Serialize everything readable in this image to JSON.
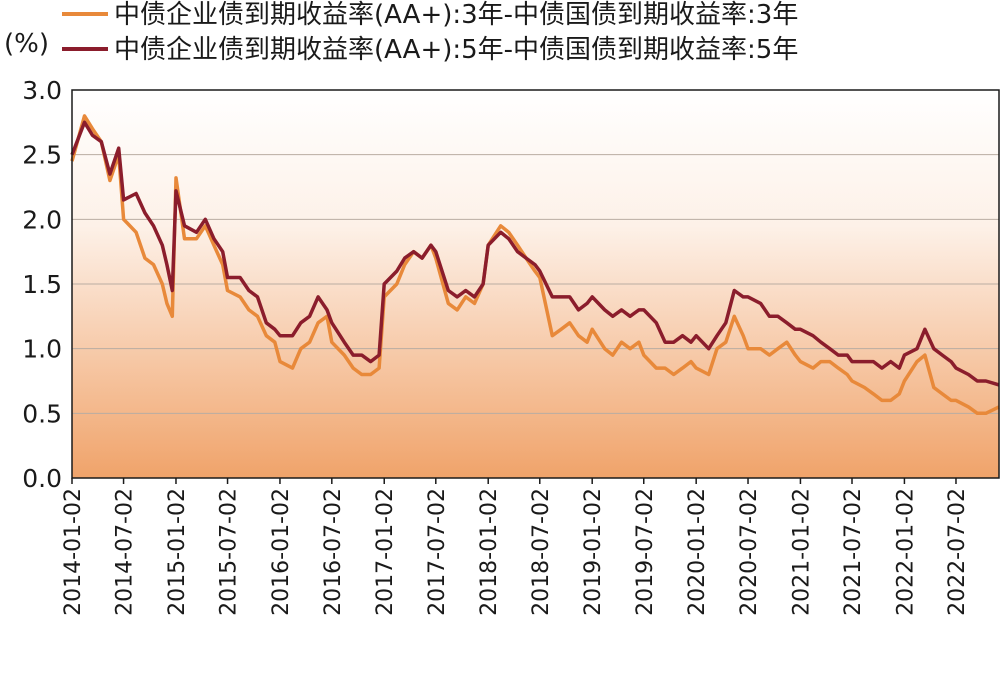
{
  "chart_data": {
    "type": "line",
    "unit_label": "(%)",
    "ylim": [
      0.0,
      3.0
    ],
    "y_ticks": [
      "3.0",
      "2.5",
      "2.0",
      "1.5",
      "1.0",
      "0.5",
      "0.0"
    ],
    "x_range": [
      "2014-01-02",
      "2022-11-30"
    ],
    "x_ticks": [
      "2014-01-02",
      "2014-07-02",
      "2015-01-02",
      "2015-07-02",
      "2016-01-02",
      "2016-07-02",
      "2017-01-02",
      "2017-07-02",
      "2018-01-02",
      "2018-07-02",
      "2019-01-02",
      "2019-07-02",
      "2020-01-02",
      "2020-07-02",
      "2021-01-02",
      "2021-07-02",
      "2022-01-02",
      "2022-07-02"
    ],
    "grid": true,
    "legend_position": "top",
    "colors": {
      "series_3y": "#e8893a",
      "series_5y": "#8b1d2c",
      "fill_top": "#ffffff",
      "fill_bottom": "#f0a36a"
    },
    "series": [
      {
        "name": "中债企业债到期收益率(AA+):3年-中债国债到期收益率:3年",
        "x": [
          "2014-01-02",
          "2014-02-15",
          "2014-03-15",
          "2014-04-15",
          "2014-05-15",
          "2014-06-15",
          "2014-07-02",
          "2014-08-15",
          "2014-09-15",
          "2014-10-15",
          "2014-11-15",
          "2014-12-01",
          "2014-12-20",
          "2015-01-02",
          "2015-02-01",
          "2015-03-15",
          "2015-04-15",
          "2015-05-15",
          "2015-06-15",
          "2015-07-02",
          "2015-08-15",
          "2015-09-15",
          "2015-10-15",
          "2015-11-15",
          "2015-12-15",
          "2016-01-02",
          "2016-02-15",
          "2016-03-15",
          "2016-04-15",
          "2016-05-15",
          "2016-06-15",
          "2016-07-02",
          "2016-08-15",
          "2016-09-15",
          "2016-10-15",
          "2016-11-15",
          "2016-12-15",
          "2017-01-02",
          "2017-02-15",
          "2017-03-15",
          "2017-04-15",
          "2017-05-15",
          "2017-06-15",
          "2017-07-02",
          "2017-08-15",
          "2017-09-15",
          "2017-10-15",
          "2017-11-15",
          "2017-12-15",
          "2018-01-02",
          "2018-02-15",
          "2018-03-15",
          "2018-04-15",
          "2018-05-15",
          "2018-06-15",
          "2018-07-02",
          "2018-08-15",
          "2018-09-15",
          "2018-10-15",
          "2018-11-15",
          "2018-12-15",
          "2019-01-02",
          "2019-02-15",
          "2019-03-15",
          "2019-04-15",
          "2019-05-15",
          "2019-06-15",
          "2019-07-02",
          "2019-08-15",
          "2019-09-15",
          "2019-10-15",
          "2019-11-15",
          "2019-12-15",
          "2020-01-02",
          "2020-02-15",
          "2020-03-15",
          "2020-04-15",
          "2020-05-15",
          "2020-06-15",
          "2020-07-02",
          "2020-08-15",
          "2020-09-15",
          "2020-10-15",
          "2020-11-15",
          "2020-12-15",
          "2021-01-02",
          "2021-02-15",
          "2021-03-15",
          "2021-04-15",
          "2021-05-15",
          "2021-06-15",
          "2021-07-02",
          "2021-08-15",
          "2021-09-15",
          "2021-10-15",
          "2021-11-15",
          "2021-12-15",
          "2022-01-02",
          "2022-02-15",
          "2022-03-15",
          "2022-04-15",
          "2022-05-15",
          "2022-06-15",
          "2022-07-02",
          "2022-08-15",
          "2022-09-15",
          "2022-10-15",
          "2022-11-30"
        ],
        "values": [
          2.45,
          2.8,
          2.7,
          2.6,
          2.3,
          2.5,
          2.0,
          1.9,
          1.7,
          1.65,
          1.5,
          1.35,
          1.25,
          2.32,
          1.85,
          1.85,
          1.95,
          1.8,
          1.65,
          1.45,
          1.4,
          1.3,
          1.25,
          1.1,
          1.05,
          0.9,
          0.85,
          1.0,
          1.05,
          1.2,
          1.25,
          1.05,
          0.95,
          0.85,
          0.8,
          0.8,
          0.85,
          1.4,
          1.5,
          1.65,
          1.75,
          1.7,
          1.8,
          1.7,
          1.35,
          1.3,
          1.4,
          1.35,
          1.5,
          1.8,
          1.95,
          1.9,
          1.8,
          1.7,
          1.6,
          1.55,
          1.1,
          1.15,
          1.2,
          1.1,
          1.05,
          1.15,
          1.0,
          0.95,
          1.05,
          1.0,
          1.05,
          0.95,
          0.85,
          0.85,
          0.8,
          0.85,
          0.9,
          0.85,
          0.8,
          1.0,
          1.05,
          1.25,
          1.1,
          1.0,
          1.0,
          0.95,
          1.0,
          1.05,
          0.95,
          0.9,
          0.85,
          0.9,
          0.9,
          0.85,
          0.8,
          0.75,
          0.7,
          0.65,
          0.6,
          0.6,
          0.65,
          0.75,
          0.9,
          0.95,
          0.7,
          0.65,
          0.6,
          0.6,
          0.55,
          0.5,
          0.5,
          0.55
        ]
      },
      {
        "name": "中债企业债到期收益率(AA+):5年-中债国债到期收益率:5年",
        "x": [
          "2014-01-02",
          "2014-02-15",
          "2014-03-15",
          "2014-04-15",
          "2014-05-15",
          "2014-06-15",
          "2014-07-02",
          "2014-08-15",
          "2014-09-15",
          "2014-10-15",
          "2014-11-15",
          "2014-12-01",
          "2014-12-20",
          "2015-01-02",
          "2015-02-01",
          "2015-03-15",
          "2015-04-15",
          "2015-05-15",
          "2015-06-15",
          "2015-07-02",
          "2015-08-15",
          "2015-09-15",
          "2015-10-15",
          "2015-11-15",
          "2015-12-15",
          "2016-01-02",
          "2016-02-15",
          "2016-03-15",
          "2016-04-15",
          "2016-05-15",
          "2016-06-15",
          "2016-07-02",
          "2016-08-15",
          "2016-09-15",
          "2016-10-15",
          "2016-11-15",
          "2016-12-15",
          "2017-01-02",
          "2017-02-15",
          "2017-03-15",
          "2017-04-15",
          "2017-05-15",
          "2017-06-15",
          "2017-07-02",
          "2017-08-15",
          "2017-09-15",
          "2017-10-15",
          "2017-11-15",
          "2017-12-15",
          "2018-01-02",
          "2018-02-15",
          "2018-03-15",
          "2018-04-15",
          "2018-05-15",
          "2018-06-15",
          "2018-07-02",
          "2018-08-15",
          "2018-09-15",
          "2018-10-15",
          "2018-11-15",
          "2018-12-15",
          "2019-01-02",
          "2019-02-15",
          "2019-03-15",
          "2019-04-15",
          "2019-05-15",
          "2019-06-15",
          "2019-07-02",
          "2019-08-15",
          "2019-09-15",
          "2019-10-15",
          "2019-11-15",
          "2019-12-15",
          "2020-01-02",
          "2020-02-15",
          "2020-03-15",
          "2020-04-15",
          "2020-05-15",
          "2020-06-15",
          "2020-07-02",
          "2020-08-15",
          "2020-09-15",
          "2020-10-15",
          "2020-11-15",
          "2020-12-15",
          "2021-01-02",
          "2021-02-15",
          "2021-03-15",
          "2021-04-15",
          "2021-05-15",
          "2021-06-15",
          "2021-07-02",
          "2021-08-15",
          "2021-09-15",
          "2021-10-15",
          "2021-11-15",
          "2021-12-15",
          "2022-01-02",
          "2022-02-15",
          "2022-03-15",
          "2022-04-15",
          "2022-05-15",
          "2022-06-15",
          "2022-07-02",
          "2022-08-15",
          "2022-09-15",
          "2022-10-15",
          "2022-11-30"
        ],
        "values": [
          2.5,
          2.75,
          2.65,
          2.6,
          2.35,
          2.55,
          2.15,
          2.2,
          2.05,
          1.95,
          1.8,
          1.65,
          1.45,
          2.22,
          1.95,
          1.9,
          2.0,
          1.85,
          1.75,
          1.55,
          1.55,
          1.45,
          1.4,
          1.2,
          1.15,
          1.1,
          1.1,
          1.2,
          1.25,
          1.4,
          1.3,
          1.2,
          1.05,
          0.95,
          0.95,
          0.9,
          0.95,
          1.5,
          1.6,
          1.7,
          1.75,
          1.7,
          1.8,
          1.75,
          1.45,
          1.4,
          1.45,
          1.4,
          1.5,
          1.8,
          1.9,
          1.85,
          1.75,
          1.7,
          1.65,
          1.6,
          1.4,
          1.4,
          1.4,
          1.3,
          1.35,
          1.4,
          1.3,
          1.25,
          1.3,
          1.25,
          1.3,
          1.3,
          1.2,
          1.05,
          1.05,
          1.1,
          1.05,
          1.1,
          1.0,
          1.1,
          1.2,
          1.45,
          1.4,
          1.4,
          1.35,
          1.25,
          1.25,
          1.2,
          1.15,
          1.15,
          1.1,
          1.05,
          1.0,
          0.95,
          0.95,
          0.9,
          0.9,
          0.9,
          0.85,
          0.9,
          0.85,
          0.95,
          1.0,
          1.15,
          1.0,
          0.95,
          0.9,
          0.85,
          0.8,
          0.75,
          0.75,
          0.72
        ]
      }
    ]
  }
}
